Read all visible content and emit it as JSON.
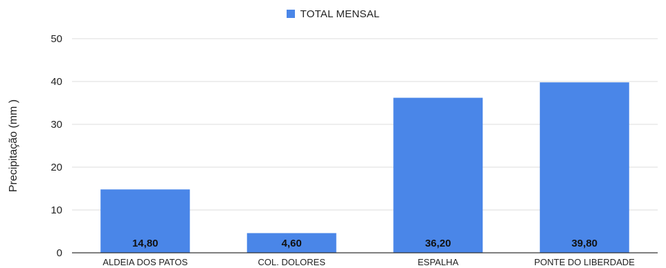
{
  "chart_data": {
    "type": "bar",
    "categories": [
      "ALDEIA DOS PATOS",
      "COL. DOLORES",
      "ESPALHA",
      "PONTE DO LIBERDADE"
    ],
    "series": [
      {
        "name": "TOTAL MENSAL",
        "values": [
          14.8,
          4.6,
          36.2,
          39.8
        ]
      }
    ],
    "data_labels": [
      "14,80",
      "4,60",
      "36,20",
      "39,80"
    ],
    "ylabel": "Precipitação (mm )",
    "xlabel": "",
    "ylim": [
      0,
      50
    ],
    "yticks": [
      0,
      10,
      20,
      30,
      40,
      50
    ],
    "grid": true,
    "legend_position": "top-center",
    "colors": {
      "bar": "#4a86e8",
      "grid": "#dcdcdc",
      "axis": "#333333",
      "text": "#222222"
    }
  }
}
